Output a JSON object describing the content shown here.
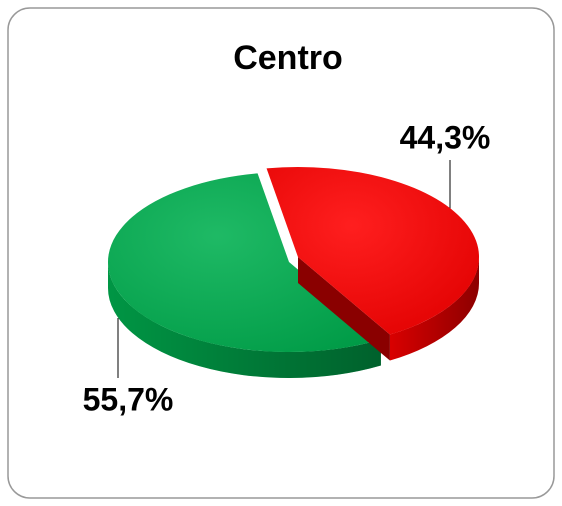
{
  "chart_data": {
    "type": "pie",
    "title": "Centro",
    "values": [
      44.3,
      55.7
    ],
    "value_labels": [
      "44,3%",
      "55,7%"
    ],
    "colors": [
      "#ff0000",
      "#00b050"
    ]
  }
}
